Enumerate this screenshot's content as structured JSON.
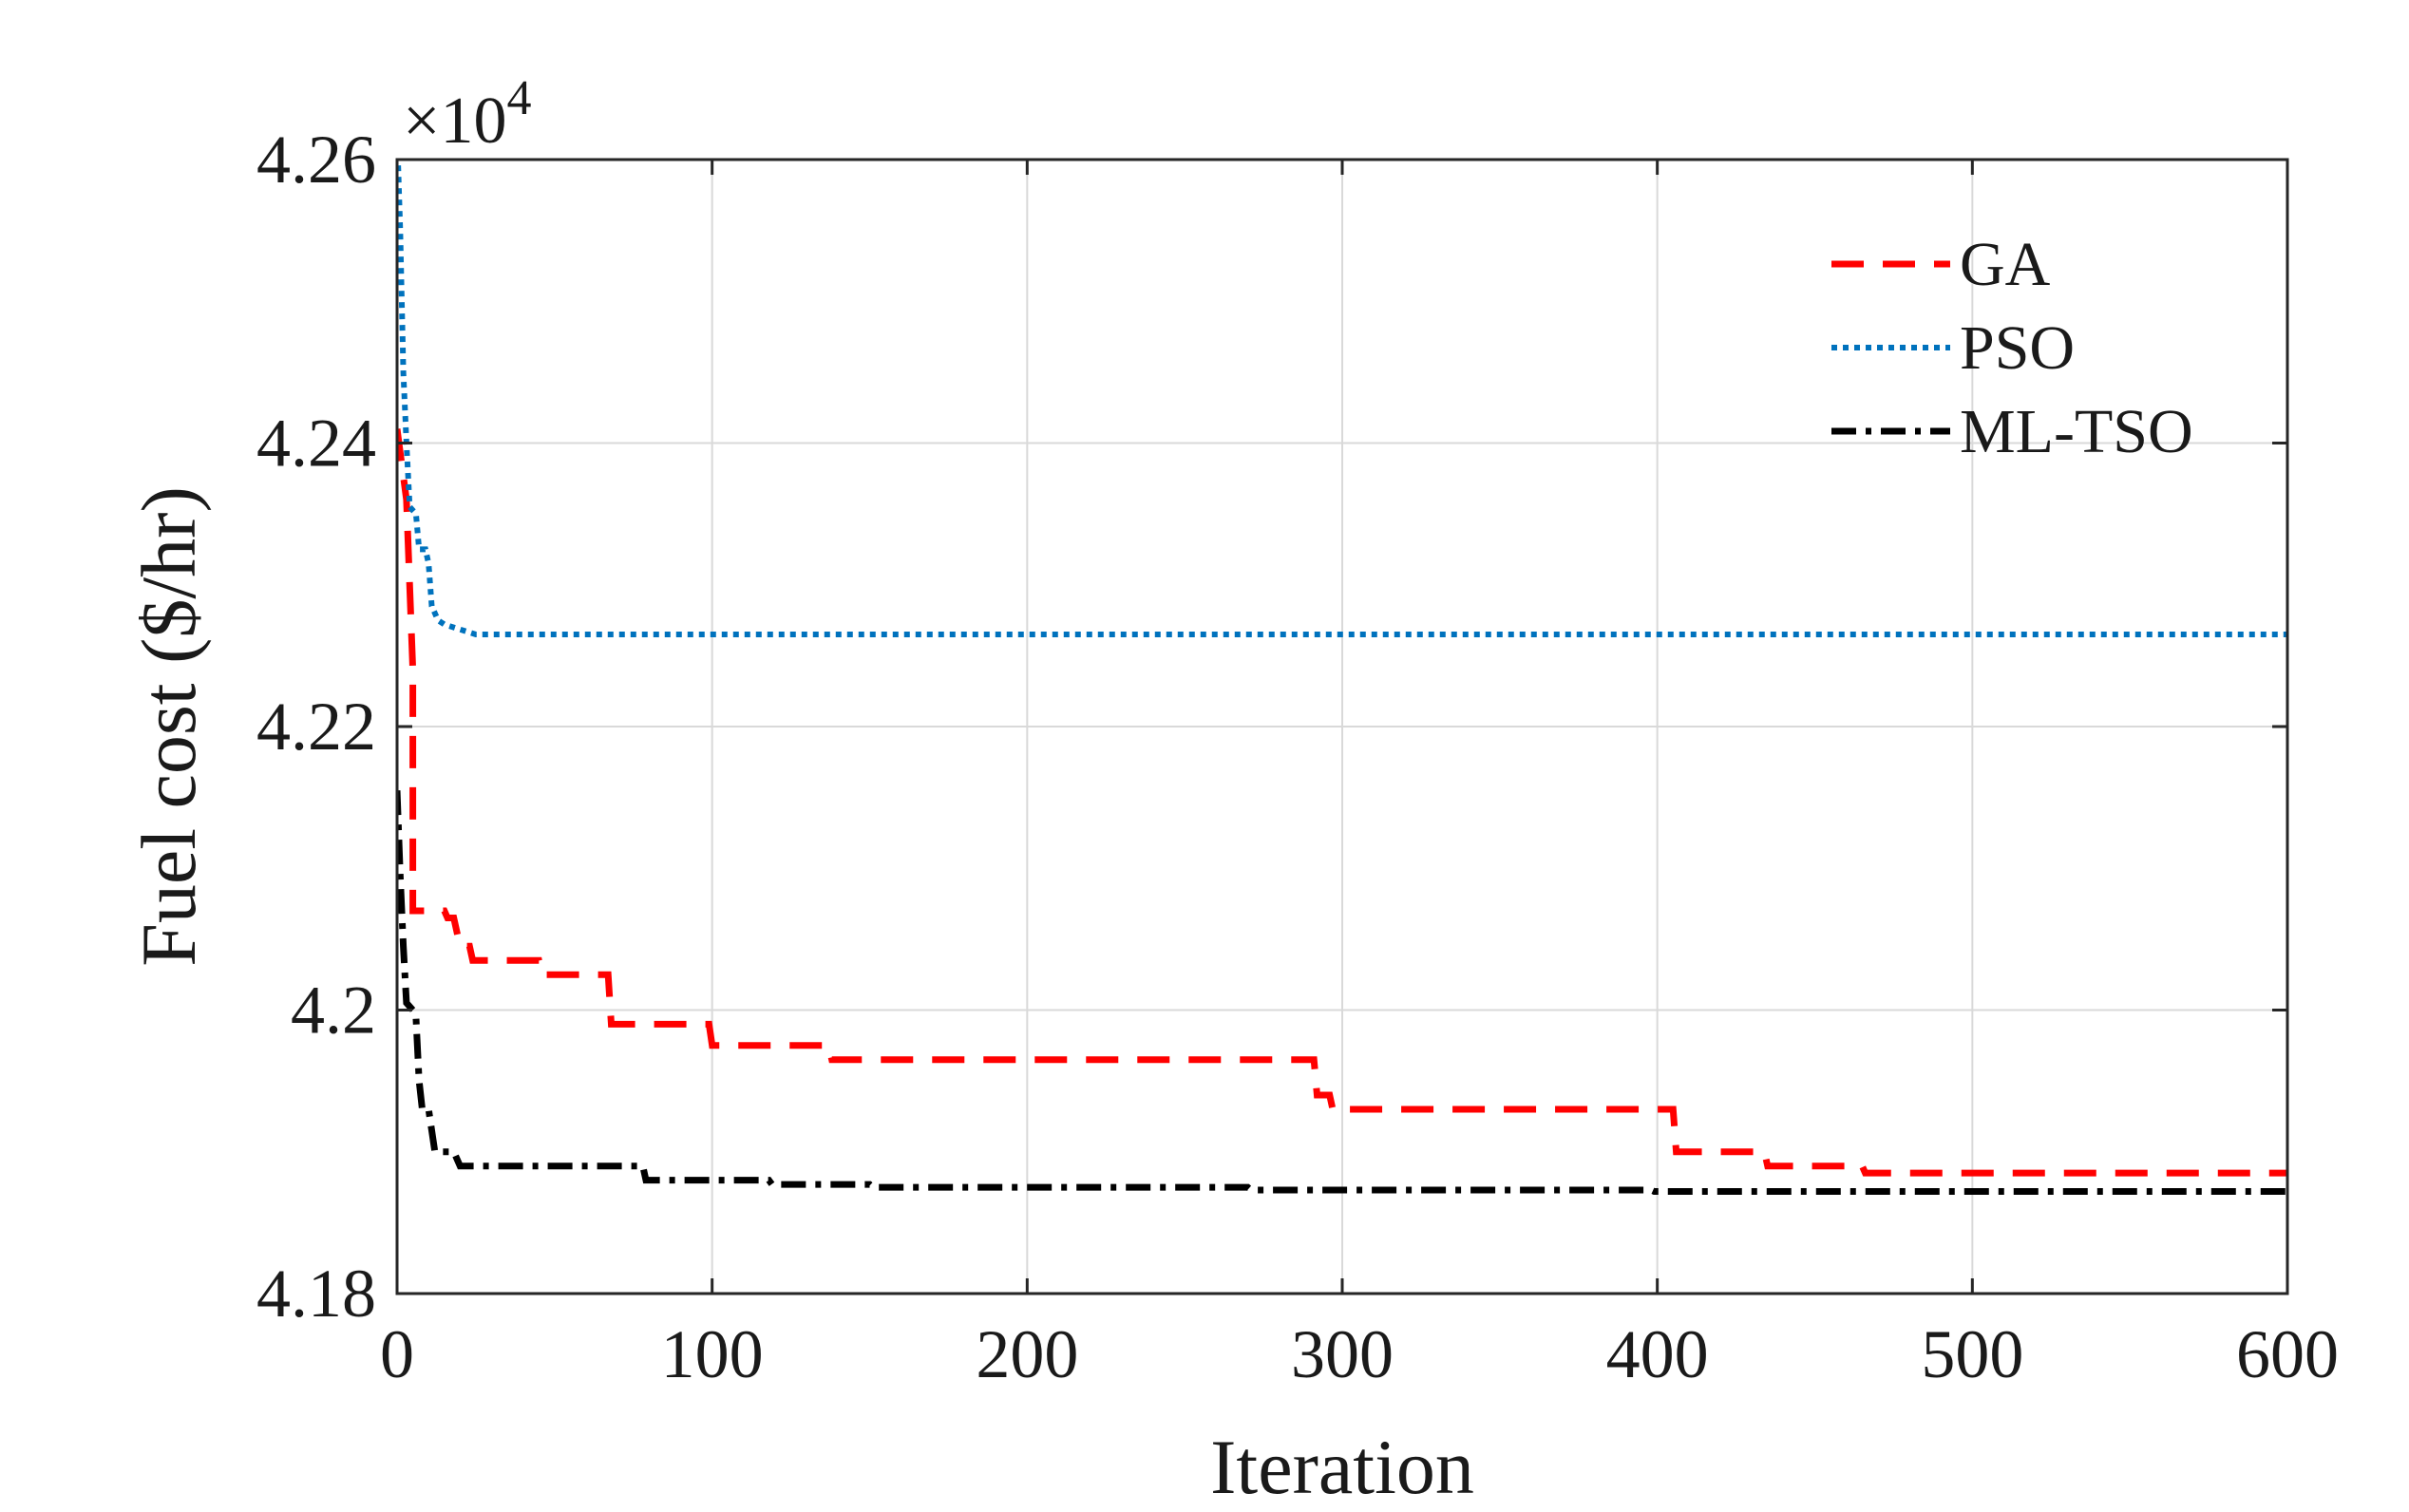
{
  "chart_data": {
    "type": "line",
    "title": "",
    "xlabel": "Iteration",
    "ylabel": "Fuel cost ($/hr)",
    "y_multiplier": {
      "base": "×10",
      "exponent": "4"
    },
    "xlim": [
      0,
      600
    ],
    "ylim": [
      4.18,
      4.26
    ],
    "xticks": [
      0,
      100,
      200,
      300,
      400,
      500,
      600
    ],
    "xtick_labels": [
      "0",
      "100",
      "200",
      "300",
      "400",
      "500",
      "600"
    ],
    "yticks": [
      4.18,
      4.2,
      4.22,
      4.24,
      4.26
    ],
    "ytick_labels": [
      "4.18",
      "4.2",
      "4.22",
      "4.24",
      "4.26"
    ],
    "grid": true,
    "legend_position": "top-right",
    "series": [
      {
        "name": "GA",
        "color": "#ff0000",
        "style": "dashed",
        "points": [
          [
            0,
            4.241
          ],
          [
            3,
            4.236
          ],
          [
            5,
            4.224
          ],
          [
            5,
            4.207
          ],
          [
            15,
            4.207
          ],
          [
            16,
            4.2065
          ],
          [
            18,
            4.2065
          ],
          [
            20,
            4.2045
          ],
          [
            23,
            4.2045
          ],
          [
            24,
            4.2035
          ],
          [
            45,
            4.2035
          ],
          [
            46,
            4.2025
          ],
          [
            67,
            4.2025
          ],
          [
            68,
            4.199
          ],
          [
            99,
            4.199
          ],
          [
            100,
            4.1975
          ],
          [
            137,
            4.1975
          ],
          [
            138,
            4.1965
          ],
          [
            291,
            4.1965
          ],
          [
            292,
            4.194
          ],
          [
            296,
            4.194
          ],
          [
            297,
            4.193
          ],
          [
            405,
            4.193
          ],
          [
            406,
            4.19
          ],
          [
            434,
            4.19
          ],
          [
            435,
            4.189
          ],
          [
            465,
            4.189
          ],
          [
            466,
            4.1885
          ],
          [
            600,
            4.1885
          ]
        ]
      },
      {
        "name": "PSO",
        "color": "#0072bd",
        "style": "dotted",
        "points": [
          [
            0,
            4.262
          ],
          [
            1,
            4.255
          ],
          [
            2,
            4.245
          ],
          [
            3,
            4.24
          ],
          [
            4,
            4.2355
          ],
          [
            6,
            4.235
          ],
          [
            7,
            4.2325
          ],
          [
            9,
            4.2325
          ],
          [
            10,
            4.2315
          ],
          [
            11,
            4.2285
          ],
          [
            13,
            4.2275
          ],
          [
            15,
            4.2272
          ],
          [
            25,
            4.2265
          ],
          [
            600,
            4.2265
          ]
        ]
      },
      {
        "name": "ML-TSO",
        "color": "#000000",
        "style": "dashdot",
        "points": [
          [
            0,
            4.2155
          ],
          [
            1,
            4.2095
          ],
          [
            2,
            4.2045
          ],
          [
            3,
            4.2005
          ],
          [
            5,
            4.2
          ],
          [
            6,
            4.1995
          ],
          [
            7,
            4.195
          ],
          [
            8,
            4.193
          ],
          [
            10,
            4.193
          ],
          [
            11,
            4.1915
          ],
          [
            12,
            4.19
          ],
          [
            18,
            4.19
          ],
          [
            19,
            4.1895
          ],
          [
            20,
            4.189
          ],
          [
            78,
            4.189
          ],
          [
            79,
            4.188
          ],
          [
            118,
            4.188
          ],
          [
            119,
            4.1877
          ],
          [
            150,
            4.1877
          ],
          [
            151,
            4.1875
          ],
          [
            270,
            4.1875
          ],
          [
            271,
            4.1873
          ],
          [
            398,
            4.1873
          ],
          [
            399,
            4.1872
          ],
          [
            600,
            4.1872
          ]
        ]
      }
    ]
  }
}
